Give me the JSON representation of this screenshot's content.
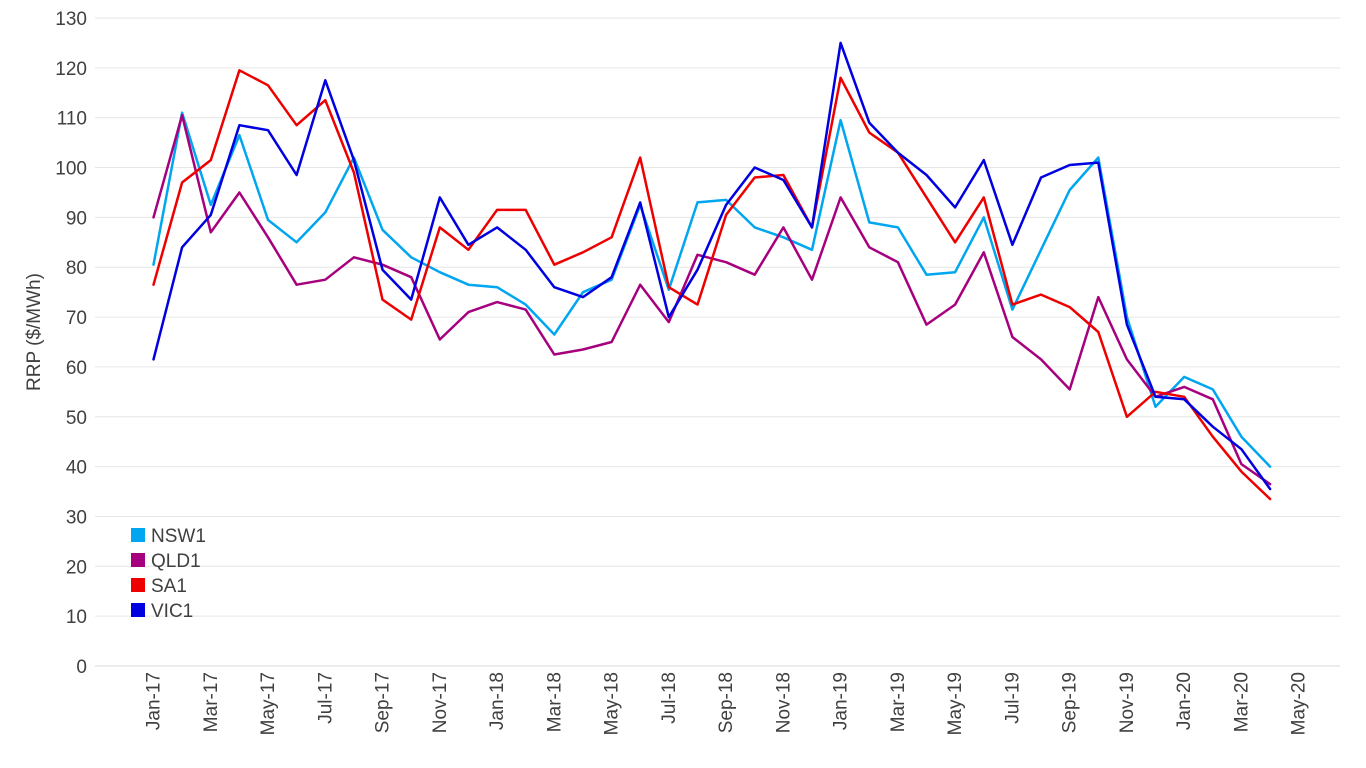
{
  "chart_data": {
    "type": "line",
    "title": "",
    "xlabel": "",
    "ylabel": "RRP ($/MWh)",
    "ylim": [
      0,
      130
    ],
    "yticks": [
      0,
      10,
      20,
      30,
      40,
      50,
      60,
      70,
      80,
      90,
      100,
      110,
      120,
      130
    ],
    "grid": true,
    "legend_position": "bottom-left",
    "x_tick_labels": [
      "Jan-17",
      "Mar-17",
      "May-17",
      "Jul-17",
      "Sep-17",
      "Nov-17",
      "Jan-18",
      "Mar-18",
      "May-18",
      "Jul-18",
      "Sep-18",
      "Nov-18",
      "Jan-19",
      "Mar-19",
      "May-19",
      "Jul-19",
      "Sep-19",
      "Nov-19",
      "Jan-20",
      "Mar-20",
      "May-20"
    ],
    "x": [
      "Jan-17",
      "Feb-17",
      "Mar-17",
      "Apr-17",
      "May-17",
      "Jun-17",
      "Jul-17",
      "Aug-17",
      "Sep-17",
      "Oct-17",
      "Nov-17",
      "Dec-17",
      "Jan-18",
      "Feb-18",
      "Mar-18",
      "Apr-18",
      "May-18",
      "Jun-18",
      "Jul-18",
      "Aug-18",
      "Sep-18",
      "Oct-18",
      "Nov-18",
      "Dec-18",
      "Jan-19",
      "Feb-19",
      "Mar-19",
      "Apr-19",
      "May-19",
      "Jun-19",
      "Jul-19",
      "Aug-19",
      "Sep-19",
      "Oct-19",
      "Nov-19",
      "Dec-19",
      "Jan-20",
      "Feb-20",
      "Mar-20",
      "Apr-20"
    ],
    "series": [
      {
        "name": "NSW1",
        "color": "#00a6f0",
        "values": [
          80.5,
          111.0,
          92.5,
          106.5,
          89.5,
          85.0,
          91.0,
          102.0,
          87.5,
          82.0,
          79.0,
          76.5,
          76.0,
          72.5,
          66.5,
          75.0,
          77.5,
          92.5,
          75.5,
          93.0,
          93.5,
          88.0,
          86.0,
          83.5,
          109.5,
          89.0,
          88.0,
          78.5,
          79.0,
          90.0,
          71.5,
          83.5,
          95.5,
          102.0,
          70.0,
          52.0,
          58.0,
          55.5,
          46.0,
          40.0
        ]
      },
      {
        "name": "QLD1",
        "color": "#a6007e",
        "values": [
          90.0,
          110.5,
          87.0,
          95.0,
          86.0,
          76.5,
          77.5,
          82.0,
          80.5,
          78.0,
          65.5,
          71.0,
          73.0,
          71.5,
          62.5,
          63.5,
          65.0,
          76.5,
          69.0,
          82.5,
          81.0,
          78.5,
          88.0,
          77.5,
          94.0,
          84.0,
          81.0,
          68.5,
          72.5,
          83.0,
          66.0,
          61.5,
          55.5,
          74.0,
          61.5,
          54.0,
          56.0,
          53.5,
          40.5,
          36.5
        ]
      },
      {
        "name": "SA1",
        "color": "#ee0000",
        "values": [
          76.5,
          97.0,
          101.5,
          119.5,
          116.5,
          108.5,
          113.5,
          99.0,
          73.5,
          69.5,
          88.0,
          83.5,
          91.5,
          91.5,
          80.5,
          83.0,
          86.0,
          102.0,
          76.0,
          72.5,
          90.5,
          98.0,
          98.5,
          88.0,
          118.0,
          107.0,
          103.0,
          94.0,
          85.0,
          94.0,
          72.5,
          74.5,
          72.0,
          67.0,
          50.0,
          55.0,
          54.0,
          46.0,
          39.0,
          33.5
        ]
      },
      {
        "name": "VIC1",
        "color": "#0000e0",
        "values": [
          61.5,
          84.0,
          90.5,
          108.5,
          107.5,
          98.5,
          117.5,
          101.5,
          79.5,
          73.5,
          94.0,
          84.5,
          88.0,
          83.5,
          76.0,
          74.0,
          78.0,
          93.0,
          70.0,
          79.5,
          92.5,
          100.0,
          97.5,
          88.0,
          125.0,
          109.0,
          103.0,
          98.5,
          92.0,
          101.5,
          84.5,
          98.0,
          100.5,
          101.0,
          68.5,
          54.0,
          53.5,
          48.0,
          43.5,
          35.5
        ]
      }
    ]
  }
}
